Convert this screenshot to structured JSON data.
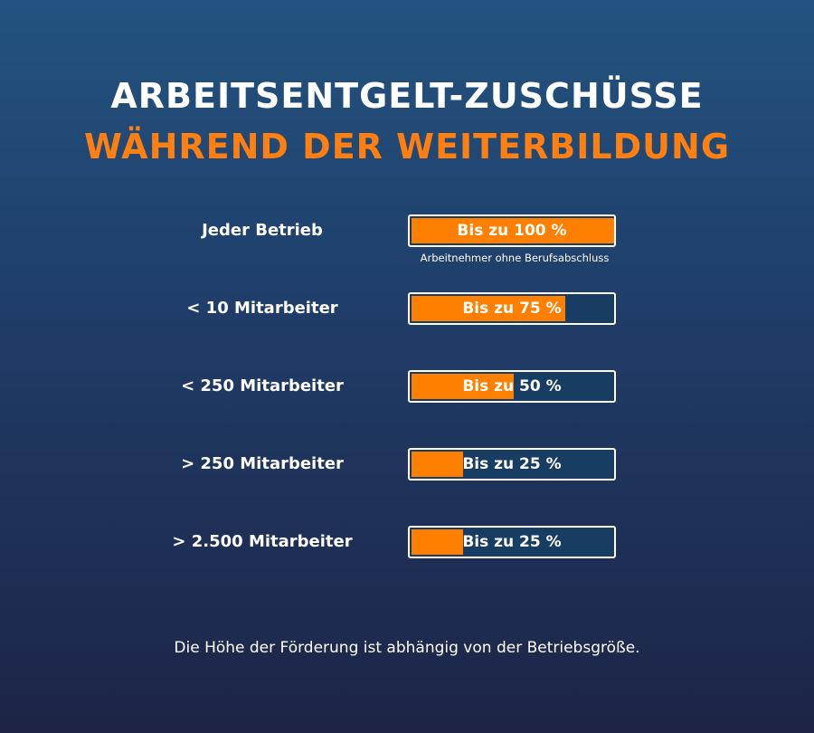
{
  "title_line1": "ARBEITSENTGELT-ZUSCHÜSSE",
  "title_line2": "WÄHREND DER WEITERBILDUNG",
  "footer": "Die Höhe der Förderung ist abhängig von der Betriebsgröße.",
  "colors": {
    "accent": "#ff8000",
    "background_top": "#235380",
    "background_bottom": "#1d2446"
  },
  "chart_data": {
    "type": "bar",
    "orientation": "horizontal",
    "categories": [
      "Jeder Betrieb",
      "< 10 Mitarbeiter",
      "< 250 Mitarbeiter",
      "> 250 Mitarbeiter",
      "> 2.500 Mitarbeiter"
    ],
    "values": [
      100,
      75,
      50,
      25,
      25
    ],
    "labels": [
      "Bis zu 100 %",
      "Bis zu 75 %",
      "Bis zu 50 %",
      "Bis zu 25 %",
      "Bis zu 25 %"
    ],
    "notes": [
      "Arbeitnehmer ohne Berufsabschluss",
      "",
      "",
      "",
      ""
    ],
    "xlim": [
      0,
      100
    ]
  }
}
